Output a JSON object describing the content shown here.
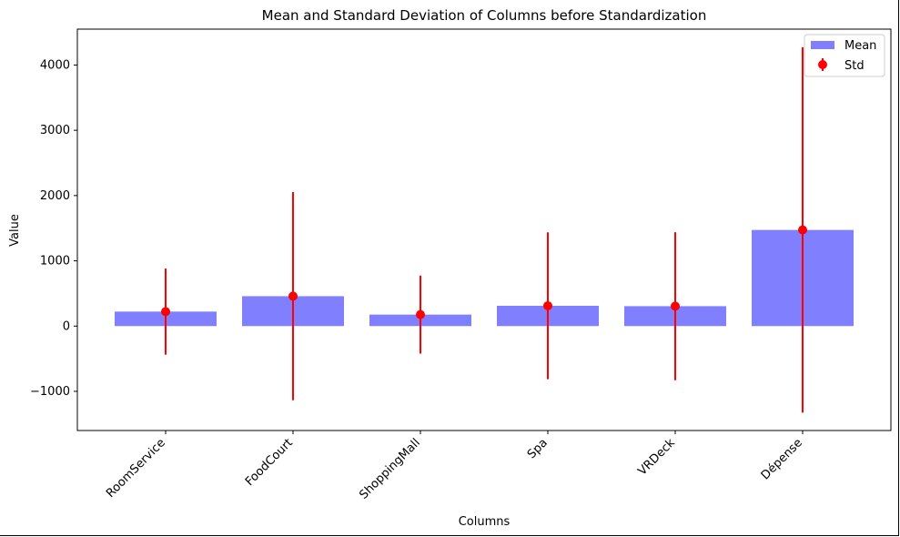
{
  "chart_data": {
    "type": "bar",
    "title": "Mean and Standard Deviation of Columns before Standardization",
    "xlabel": "Columns",
    "ylabel": "Value",
    "categories": [
      "RoomService",
      "FoodCourt",
      "ShoppingMall",
      "Spa",
      "VRDeck",
      "Dépense"
    ],
    "series": [
      {
        "name": "Mean",
        "kind": "bar",
        "color": "#8080ff",
        "values": [
          222,
          458,
          176,
          311,
          305,
          1473
        ]
      },
      {
        "name": "Std",
        "kind": "errorbar",
        "color": "#ff0000",
        "values": [
          660,
          1595,
          598,
          1125,
          1134,
          2800
        ]
      }
    ],
    "ylim": [
      -1600,
      4550
    ],
    "yticks": [
      -1000,
      0,
      1000,
      2000,
      3000,
      4000
    ],
    "legend": {
      "position": "top-right",
      "entries": [
        "Mean",
        "Std"
      ]
    }
  }
}
